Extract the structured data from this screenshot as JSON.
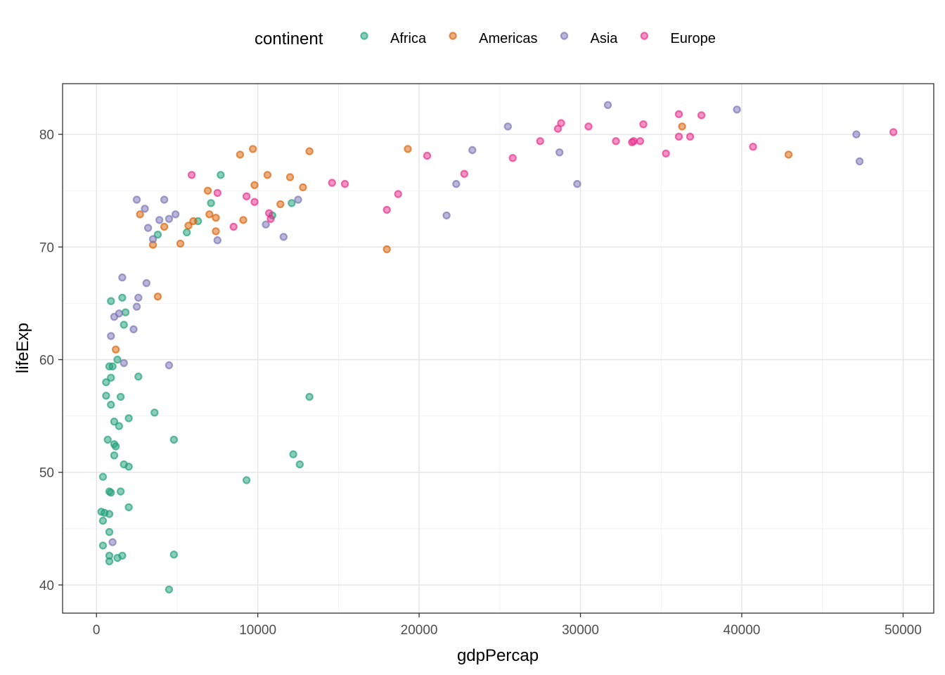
{
  "chart_data": {
    "type": "scatter",
    "xlabel": "gdpPercap",
    "ylabel": "lifeExp",
    "xlim": [
      -2100,
      51900
    ],
    "ylim": [
      37.5,
      84.5
    ],
    "x_ticks": [
      0,
      10000,
      20000,
      30000,
      40000,
      50000
    ],
    "x_tick_labels": [
      "0",
      "10000",
      "20000",
      "30000",
      "40000",
      "50000"
    ],
    "y_ticks": [
      40,
      50,
      60,
      70,
      80
    ],
    "y_tick_labels": [
      "40",
      "50",
      "60",
      "70",
      "80"
    ],
    "grid": true,
    "legend": {
      "title": "continent",
      "position": "top"
    },
    "series": [
      {
        "name": "Africa",
        "color": "#1b9e77",
        "points": [
          [
            7700,
            76.4
          ],
          [
            7100,
            73.9
          ],
          [
            6300,
            72.3
          ],
          [
            5600,
            71.3
          ],
          [
            3800,
            71.1
          ],
          [
            12100,
            73.9
          ],
          [
            10900,
            72.8
          ],
          [
            1600,
            65.5
          ],
          [
            1800,
            64.2
          ],
          [
            900,
            65.2
          ],
          [
            1700,
            63.1
          ],
          [
            1300,
            60.0
          ],
          [
            1000,
            59.4
          ],
          [
            800,
            59.4
          ],
          [
            900,
            58.4
          ],
          [
            600,
            58.0
          ],
          [
            2600,
            58.5
          ],
          [
            1500,
            56.7
          ],
          [
            600,
            56.8
          ],
          [
            900,
            56.0
          ],
          [
            1100,
            54.5
          ],
          [
            2000,
            54.8
          ],
          [
            1400,
            54.1
          ],
          [
            13200,
            56.7
          ],
          [
            3600,
            55.3
          ],
          [
            700,
            52.9
          ],
          [
            1100,
            52.5
          ],
          [
            1200,
            52.3
          ],
          [
            4800,
            52.9
          ],
          [
            1100,
            51.5
          ],
          [
            12200,
            51.6
          ],
          [
            12600,
            50.7
          ],
          [
            1700,
            50.7
          ],
          [
            2000,
            50.5
          ],
          [
            400,
            49.6
          ],
          [
            9300,
            49.3
          ],
          [
            800,
            48.3
          ],
          [
            900,
            48.2
          ],
          [
            1500,
            48.3
          ],
          [
            2000,
            46.9
          ],
          [
            300,
            46.5
          ],
          [
            500,
            46.4
          ],
          [
            800,
            46.3
          ],
          [
            400,
            45.7
          ],
          [
            800,
            44.7
          ],
          [
            400,
            43.5
          ],
          [
            800,
            42.6
          ],
          [
            1300,
            42.4
          ],
          [
            1600,
            42.6
          ],
          [
            800,
            42.1
          ],
          [
            4800,
            42.7
          ],
          [
            4500,
            39.6
          ]
        ]
      },
      {
        "name": "Americas",
        "color": "#d95f02",
        "points": [
          [
            9700,
            78.7
          ],
          [
            8900,
            78.2
          ],
          [
            13200,
            78.5
          ],
          [
            19300,
            78.7
          ],
          [
            36300,
            80.7
          ],
          [
            42900,
            78.2
          ],
          [
            10600,
            76.4
          ],
          [
            12000,
            76.2
          ],
          [
            9800,
            75.5
          ],
          [
            12800,
            75.3
          ],
          [
            6900,
            75.0
          ],
          [
            11400,
            73.8
          ],
          [
            2700,
            72.9
          ],
          [
            7000,
            72.9
          ],
          [
            6000,
            72.3
          ],
          [
            7400,
            72.6
          ],
          [
            9100,
            72.4
          ],
          [
            4200,
            71.8
          ],
          [
            5700,
            71.9
          ],
          [
            7400,
            71.4
          ],
          [
            3500,
            70.2
          ],
          [
            5200,
            70.3
          ],
          [
            18000,
            69.8
          ],
          [
            3800,
            65.6
          ],
          [
            1200,
            60.9
          ]
        ]
      },
      {
        "name": "Asia",
        "color": "#7570b3",
        "points": [
          [
            31700,
            82.6
          ],
          [
            39700,
            82.2
          ],
          [
            25500,
            80.7
          ],
          [
            47100,
            80.0
          ],
          [
            47300,
            77.6
          ],
          [
            28700,
            78.4
          ],
          [
            23300,
            78.6
          ],
          [
            22300,
            75.6
          ],
          [
            29800,
            75.6
          ],
          [
            2500,
            74.2
          ],
          [
            4200,
            74.2
          ],
          [
            12500,
            74.2
          ],
          [
            3000,
            73.4
          ],
          [
            4900,
            72.9
          ],
          [
            4500,
            72.5
          ],
          [
            3900,
            72.4
          ],
          [
            21700,
            72.8
          ],
          [
            3200,
            71.7
          ],
          [
            10500,
            72.0
          ],
          [
            11600,
            70.9
          ],
          [
            7500,
            70.6
          ],
          [
            3500,
            70.7
          ],
          [
            1600,
            67.3
          ],
          [
            3100,
            66.8
          ],
          [
            2600,
            65.5
          ],
          [
            2500,
            64.7
          ],
          [
            1400,
            64.1
          ],
          [
            1100,
            63.8
          ],
          [
            2300,
            62.7
          ],
          [
            900,
            62.1
          ],
          [
            1700,
            59.7
          ],
          [
            4500,
            59.5
          ],
          [
            1000,
            43.8
          ]
        ]
      },
      {
        "name": "Europe",
        "color": "#e7298a",
        "points": [
          [
            49400,
            80.2
          ],
          [
            36100,
            81.8
          ],
          [
            37500,
            81.7
          ],
          [
            28800,
            81.0
          ],
          [
            33900,
            80.9
          ],
          [
            30500,
            80.7
          ],
          [
            28600,
            80.5
          ],
          [
            36100,
            79.8
          ],
          [
            36800,
            79.8
          ],
          [
            27500,
            79.4
          ],
          [
            32200,
            79.4
          ],
          [
            33200,
            79.3
          ],
          [
            33700,
            79.4
          ],
          [
            33300,
            79.4
          ],
          [
            40700,
            78.9
          ],
          [
            35300,
            78.3
          ],
          [
            20500,
            78.1
          ],
          [
            25800,
            77.9
          ],
          [
            22800,
            76.5
          ],
          [
            5900,
            76.4
          ],
          [
            14600,
            75.7
          ],
          [
            15400,
            75.6
          ],
          [
            7500,
            74.8
          ],
          [
            9300,
            74.5
          ],
          [
            18700,
            74.7
          ],
          [
            9800,
            74.0
          ],
          [
            18000,
            73.3
          ],
          [
            10700,
            73.0
          ],
          [
            10800,
            72.5
          ],
          [
            8500,
            71.8
          ]
        ]
      }
    ]
  }
}
